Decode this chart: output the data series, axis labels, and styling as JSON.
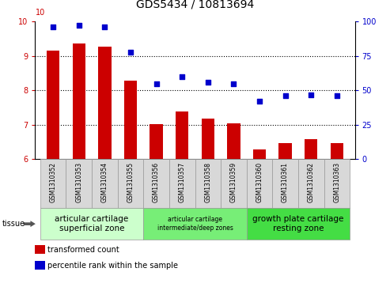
{
  "title": "GDS5434 / 10813694",
  "samples": [
    "GSM1310352",
    "GSM1310353",
    "GSM1310354",
    "GSM1310355",
    "GSM1310356",
    "GSM1310357",
    "GSM1310358",
    "GSM1310359",
    "GSM1310360",
    "GSM1310361",
    "GSM1310362",
    "GSM1310363"
  ],
  "bar_values": [
    9.15,
    9.37,
    9.28,
    8.28,
    7.02,
    7.38,
    7.17,
    7.05,
    6.28,
    6.48,
    6.58,
    6.48
  ],
  "scatter_values": [
    96,
    97,
    96,
    78,
    55,
    60,
    56,
    55,
    42,
    46,
    47,
    46
  ],
  "bar_color": "#cc0000",
  "scatter_color": "#0000cc",
  "ylim_left": [
    6,
    10
  ],
  "ylim_right": [
    0,
    100
  ],
  "yticks_left": [
    6,
    7,
    8,
    9,
    10
  ],
  "yticks_right": [
    0,
    25,
    50,
    75,
    100
  ],
  "ylabel_left_color": "#cc0000",
  "ylabel_right_color": "#0000cc",
  "tissue_groups": [
    {
      "label": "articular cartilage\nsuperficial zone",
      "indices": [
        0,
        1,
        2,
        3
      ],
      "color": "#ccffcc",
      "fontsize": 8
    },
    {
      "label": "articular cartilage\nintermediate/deep zones",
      "indices": [
        4,
        5,
        6,
        7
      ],
      "color": "#77ee77",
      "fontsize": 6
    },
    {
      "label": "growth plate cartilage\nresting zone",
      "indices": [
        8,
        9,
        10,
        11
      ],
      "color": "#44dd44",
      "fontsize": 8
    }
  ],
  "legend_bar_label": "transformed count",
  "legend_scatter_label": "percentile rank within the sample",
  "tissue_label": "tissue",
  "sample_bg_color": "#d8d8d8",
  "plot_bg_color": "#ffffff",
  "title_fontsize": 10,
  "tick_fontsize": 7,
  "sample_fontsize": 5.5,
  "group_fontsize": 7.5,
  "legend_fontsize": 7
}
